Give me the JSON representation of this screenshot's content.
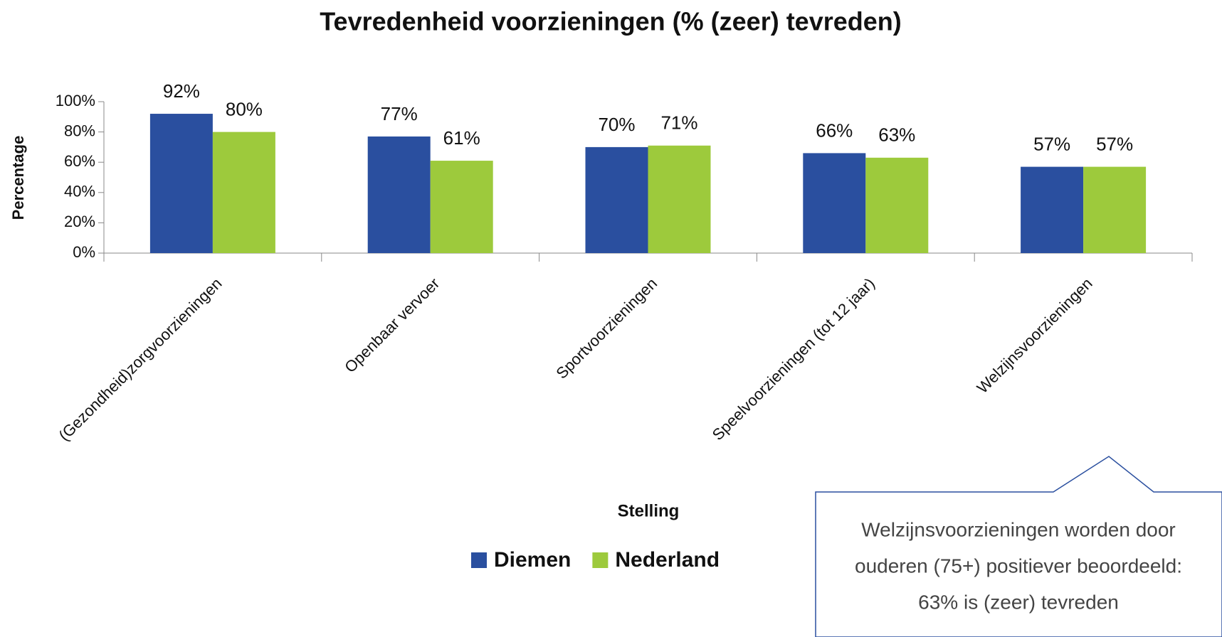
{
  "chart_data": {
    "type": "bar",
    "title": "Tevredenheid voorzieningen (% (zeer) tevreden)",
    "x_label": "Stelling",
    "y_label": "Percentage",
    "categories": [
      "(Gezondheid)zorgvoorzieningen",
      "Openbaar vervoer",
      "Sportvoorzieningen",
      "Speelvoorzieningen (tot 12 jaar)",
      "Welzijnsvoorzieningen"
    ],
    "series": [
      {
        "name": "Diemen",
        "color": "#2a4f9f",
        "values": [
          92,
          77,
          70,
          66,
          57
        ],
        "value_labels": [
          "92%",
          "77%",
          "70%",
          "66%",
          "57%"
        ]
      },
      {
        "name": "Nederland",
        "color": "#9dca3c",
        "values": [
          80,
          61,
          71,
          63,
          57
        ],
        "value_labels": [
          "80%",
          "61%",
          "71%",
          "63%",
          "57%"
        ]
      }
    ],
    "ylim": [
      0,
      100
    ],
    "yticks": [
      {
        "value": 0,
        "label": "0%"
      },
      {
        "value": 20,
        "label": "20%"
      },
      {
        "value": 40,
        "label": "40%"
      },
      {
        "value": 60,
        "label": "60%"
      },
      {
        "value": 80,
        "label": "80%"
      },
      {
        "value": 100,
        "label": "100%"
      }
    ],
    "grid": false,
    "legend": "bottom",
    "annotation": [
      "Welzijnsvoorzieningen worden door",
      "ouderen (75+) positiever beoordeeld:",
      "63% is (zeer) tevreden"
    ]
  }
}
